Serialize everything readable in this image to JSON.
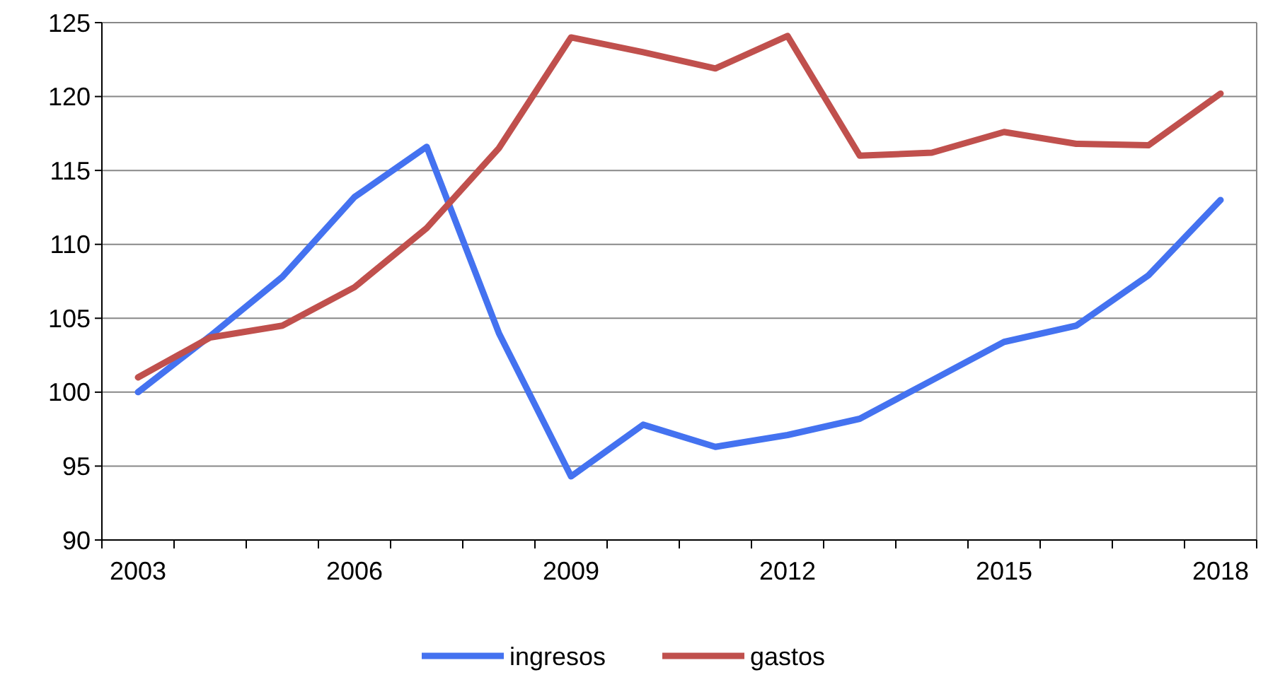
{
  "chart_data": {
    "type": "line",
    "categories": [
      "2003",
      null,
      null,
      "2006",
      null,
      null,
      "2009",
      null,
      null,
      "2012",
      null,
      null,
      "2015",
      null,
      null,
      "2018"
    ],
    "series": [
      {
        "name": "ingresos",
        "color": "#4472f0",
        "values": [
          100,
          103.8,
          107.8,
          113.2,
          116.6,
          104,
          94.3,
          97.8,
          96.3,
          97.1,
          98.2,
          100.8,
          103.4,
          104.5,
          107.9,
          113
        ]
      },
      {
        "name": "gastos",
        "color": "#c0504d",
        "values": [
          101,
          103.7,
          104.5,
          107.1,
          111.1,
          116.5,
          124,
          123,
          121.9,
          124.1,
          116,
          116.2,
          117.6,
          116.8,
          116.7,
          120.2
        ]
      }
    ],
    "ylim": [
      90,
      125
    ],
    "yticks": [
      90,
      95,
      100,
      105,
      110,
      115,
      120,
      125
    ],
    "grid": "y",
    "legend": "bottom",
    "marker": "none",
    "line_style": "solid"
  }
}
